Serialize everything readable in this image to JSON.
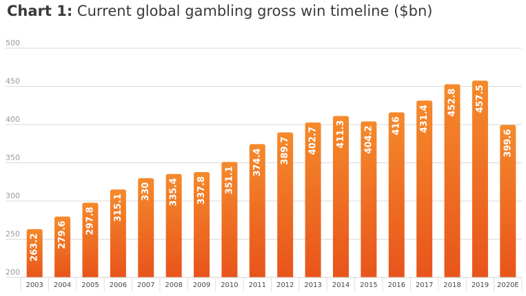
{
  "title": {
    "prefix": "Chart 1:",
    "text": " Current global gambling gross win timeline ($bn)"
  },
  "colors": {
    "bar_top": "#f58a2c",
    "bar_bottom": "#e8541b",
    "grid": "#d9d9d9",
    "tick_text": "#999999",
    "value_text": "#ffffff"
  },
  "chart_data": {
    "type": "bar",
    "title": "Chart 1: Current global gambling gross win timeline ($bn)",
    "xlabel": "",
    "ylabel": "",
    "categories": [
      "2003",
      "2004",
      "2005",
      "2006",
      "2007",
      "2008",
      "2009",
      "2010",
      "2011",
      "2012",
      "2013",
      "2014",
      "2015",
      "2016",
      "2017",
      "2018",
      "2019",
      "2020E"
    ],
    "values": [
      263.2,
      279.6,
      297.8,
      315.1,
      330,
      335.4,
      337.8,
      351.1,
      374.4,
      389.7,
      402.7,
      411.3,
      404.2,
      416,
      431.4,
      452.8,
      457.5,
      399.6
    ],
    "value_labels": [
      "263.2",
      "279.6",
      "297.8",
      "315.1",
      "330",
      "335.4",
      "337.8",
      "351.1",
      "374.4",
      "389.7",
      "402.7",
      "411.3",
      "404.2",
      "416",
      "431.4",
      "452.8",
      "457.5",
      "399.6"
    ],
    "yticks": [
      "200",
      "250",
      "300",
      "350",
      "400",
      "450",
      "500"
    ],
    "ylim": [
      200,
      500
    ],
    "grid": true,
    "legend": "none"
  }
}
